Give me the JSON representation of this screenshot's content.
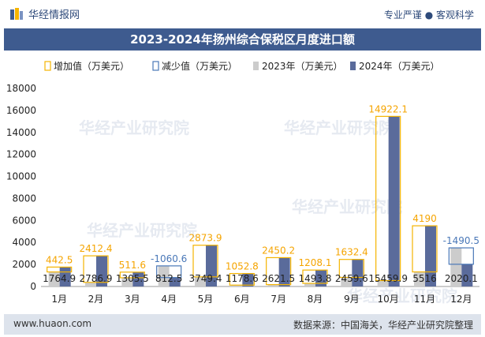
{
  "header": {
    "brand_name": "华经情报网",
    "tagline": "专业严谨 ● 客观科学"
  },
  "footer": {
    "website": "www.huaon.com",
    "source": "数据来源：中国海关，华经产业研究院整理"
  },
  "watermark": "华经产业研究院",
  "colors": {
    "increase": "#f5b400",
    "decrease": "#4a78b8",
    "y2023": "#cccccc",
    "y2024": "#5a6b9b",
    "title_band": "#3e5b8f",
    "footer_band": "#dde3ec"
  },
  "chart_data": {
    "type": "bar",
    "title": "2023-2024年扬州综合保税区月度进口额",
    "categories": [
      "1月",
      "2月",
      "3月",
      "4月",
      "5月",
      "6月",
      "7月",
      "8月",
      "9月",
      "10月",
      "11月",
      "12月"
    ],
    "series": [
      {
        "name": "2023年（万美元）",
        "values": [
          1322.4,
          374.5,
          793.9,
          1873.1,
          875.6,
          126.0,
          171.3,
          285.6,
          827.2,
          537.8,
          1326.0,
          3510.6
        ]
      },
      {
        "name": "2024年（万美元）",
        "values": [
          1764.9,
          2786.9,
          1305.5,
          812.5,
          3749.4,
          1178.6,
          2621.5,
          1493.8,
          2459.6,
          15459.9,
          5516,
          2020.1
        ]
      }
    ],
    "change_legend": [
      "增加值（万美元）",
      "减少值（万美元）"
    ],
    "change_labels": [
      "442.5",
      "2412.4",
      "511.6",
      "-1060.6",
      "2873.9",
      "1052.8",
      "2450.2",
      "1208.1",
      "1632.4",
      "14922.1",
      "4190",
      "-1490.5"
    ],
    "value_labels": [
      "1764.9",
      "2786.9",
      "1305.5",
      "812.5",
      "3749.4",
      "1178.6",
      "2621.5",
      "1493.8",
      "2459.6",
      "15459.9",
      "5516",
      "2020.1"
    ],
    "yticks": [
      "0",
      "2000",
      "4000",
      "6000",
      "8000",
      "10000",
      "12000",
      "14000",
      "16000",
      "18000"
    ],
    "ylim": [
      0,
      18000
    ]
  }
}
